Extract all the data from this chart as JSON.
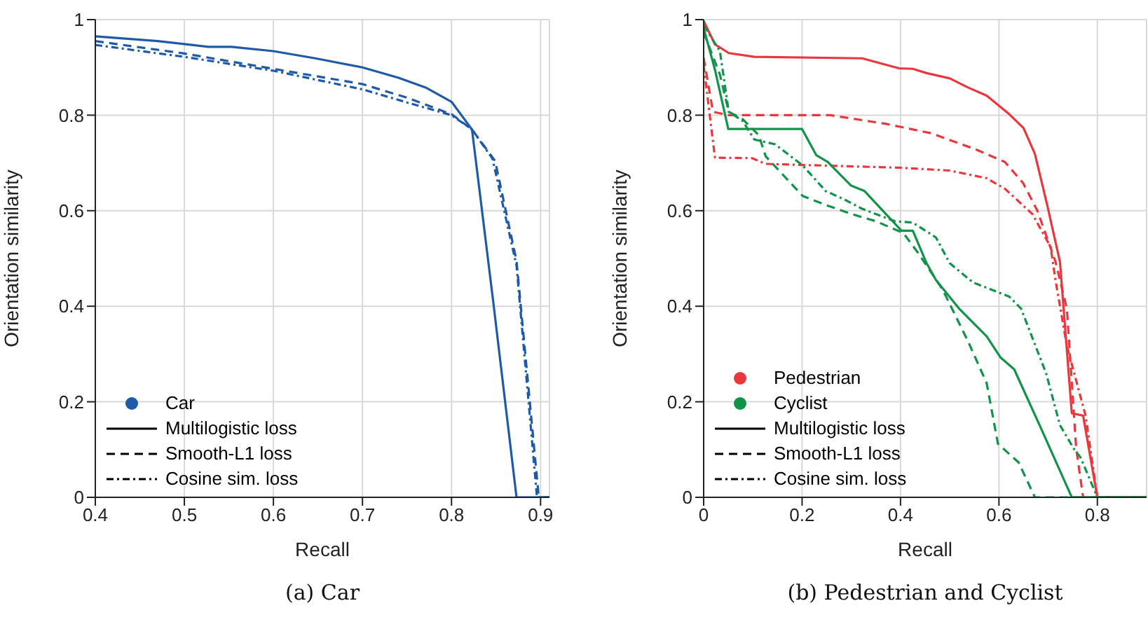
{
  "chart_data": [
    {
      "type": "line",
      "title": "(a) Car",
      "xlabel": "Recall",
      "ylabel": "Orientation similarity",
      "xlim": [
        0.4,
        0.91
      ],
      "xticks": [
        0.4,
        0.5,
        0.6,
        0.7,
        0.8,
        0.9
      ],
      "ylim": [
        0,
        1
      ],
      "yticks": [
        0,
        0.2,
        0.4,
        0.6,
        0.8,
        1
      ],
      "grid": true,
      "legend": "bottom left",
      "marker": "none",
      "series": [
        {
          "color": "#1f5aa6",
          "line_style": "solid",
          "x": [
            0.4,
            0.47,
            0.527,
            0.553,
            0.6,
            0.647,
            0.7,
            0.741,
            0.772,
            0.8,
            0.823,
            0.847,
            0.873,
            0.91
          ],
          "values": [
            0.965,
            0.955,
            0.943,
            0.943,
            0.934,
            0.919,
            0.9,
            0.878,
            0.857,
            0.828,
            0.77,
            0.407,
            0,
            0
          ]
        },
        {
          "color": "#1f5aa6",
          "line_style": "dashed",
          "x": [
            0.4,
            0.5,
            0.6,
            0.647,
            0.7,
            0.751,
            0.8,
            0.823,
            0.849,
            0.873,
            0.898,
            0.91
          ],
          "values": [
            0.955,
            0.929,
            0.897,
            0.882,
            0.865,
            0.836,
            0.802,
            0.77,
            0.704,
            0.495,
            0,
            0
          ]
        },
        {
          "color": "#1f5aa6",
          "line_style": "dashdot",
          "x": [
            0.4,
            0.5,
            0.6,
            0.7,
            0.751,
            0.8,
            0.823,
            0.846,
            0.873,
            0.896,
            0.91
          ],
          "values": [
            0.947,
            0.922,
            0.893,
            0.854,
            0.826,
            0.8,
            0.77,
            0.709,
            0.485,
            0,
            0
          ]
        },
        {
          "name": "Car",
          "type": "scatter",
          "color": "#1f5aa6"
        },
        {
          "name": "Multilogistic loss",
          "color": "#000000",
          "line_style": "solid"
        },
        {
          "name": "Smooth-L1 loss",
          "color": "#000000",
          "line_style": "dashed"
        },
        {
          "name": "Cosine sim. loss",
          "color": "#000000",
          "line_style": "dashdot"
        }
      ]
    },
    {
      "type": "line",
      "title": "(b) Pedestrian and Cyclist",
      "xlabel": "Recall",
      "ylabel": "Orientation similarity",
      "xlim": [
        0,
        0.9
      ],
      "xticks": [
        0,
        0.2,
        0.4,
        0.6,
        0.8
      ],
      "ylim": [
        0,
        1
      ],
      "yticks": [
        0,
        0.2,
        0.4,
        0.6,
        0.8,
        1
      ],
      "grid": true,
      "legend": "bottom left",
      "marker": "none",
      "series": [
        {
          "color": "#e8383d",
          "line_style": "solid",
          "x": [
            0,
            0.023,
            0.051,
            0.103,
            0.322,
            0.397,
            0.425,
            0.453,
            0.5,
            0.537,
            0.575,
            0.621,
            0.65,
            0.673,
            0.698,
            0.724,
            0.748,
            0.771,
            0.8,
            0.9
          ],
          "values": [
            0.997,
            0.948,
            0.93,
            0.922,
            0.919,
            0.898,
            0.897,
            0.888,
            0.877,
            0.858,
            0.841,
            0.802,
            0.773,
            0.719,
            0.612,
            0.493,
            0.176,
            0.171,
            0,
            0
          ]
        },
        {
          "color": "#e8383d",
          "line_style": "dashed",
          "x": [
            0,
            0.019,
            0.051,
            0.257,
            0.369,
            0.463,
            0.556,
            0.612,
            0.649,
            0.678,
            0.715,
            0.738,
            0.757,
            0.771,
            0.9
          ],
          "values": [
            0.92,
            0.807,
            0.8,
            0.8,
            0.782,
            0.762,
            0.727,
            0.702,
            0.658,
            0.6,
            0.493,
            0.395,
            0.102,
            0,
            0
          ]
        },
        {
          "color": "#e8383d",
          "line_style": "dashdot",
          "x": [
            0,
            0.023,
            0.098,
            0.126,
            0.294,
            0.397,
            0.5,
            0.575,
            0.612,
            0.668,
            0.705,
            0.715,
            0.738,
            0.776,
            0.8,
            0.9
          ],
          "values": [
            0.904,
            0.711,
            0.71,
            0.698,
            0.693,
            0.69,
            0.684,
            0.668,
            0.646,
            0.593,
            0.524,
            0.454,
            0.317,
            0.171,
            0,
            0
          ]
        },
        {
          "color": "#12924a",
          "line_style": "solid",
          "x": [
            0,
            0.023,
            0.05,
            0.2,
            0.229,
            0.252,
            0.299,
            0.327,
            0.402,
            0.425,
            0.453,
            0.472,
            0.519,
            0.575,
            0.603,
            0.631,
            0.687,
            0.748,
            0.9
          ],
          "values": [
            0.982,
            0.895,
            0.771,
            0.771,
            0.716,
            0.702,
            0.653,
            0.641,
            0.558,
            0.558,
            0.49,
            0.455,
            0.395,
            0.337,
            0.293,
            0.268,
            0.141,
            0,
            0
          ]
        },
        {
          "color": "#12924a",
          "line_style": "dashed",
          "x": [
            0,
            0.033,
            0.051,
            0.079,
            0.112,
            0.126,
            0.201,
            0.248,
            0.304,
            0.35,
            0.406,
            0.434,
            0.472,
            0.486,
            0.537,
            0.575,
            0.598,
            0.64,
            0.673,
            0.9
          ],
          "values": [
            0.973,
            0.885,
            0.807,
            0.792,
            0.758,
            0.714,
            0.631,
            0.612,
            0.592,
            0.578,
            0.553,
            0.514,
            0.456,
            0.434,
            0.327,
            0.239,
            0.112,
            0.073,
            0,
            0
          ]
        },
        {
          "color": "#12924a",
          "line_style": "dashdot",
          "x": [
            0,
            0.033,
            0.051,
            0.079,
            0.103,
            0.145,
            0.201,
            0.248,
            0.285,
            0.322,
            0.388,
            0.425,
            0.472,
            0.5,
            0.547,
            0.621,
            0.645,
            0.696,
            0.724,
            0.752,
            0.766,
            0.8,
            0.9
          ],
          "values": [
            0.988,
            0.934,
            0.807,
            0.788,
            0.749,
            0.739,
            0.695,
            0.641,
            0.624,
            0.604,
            0.578,
            0.575,
            0.544,
            0.49,
            0.45,
            0.42,
            0.395,
            0.259,
            0.151,
            0.102,
            0.083,
            0,
            0
          ]
        },
        {
          "name": "Pedestrian",
          "type": "scatter",
          "color": "#e8383d"
        },
        {
          "name": "Cyclist",
          "type": "scatter",
          "color": "#12924a"
        },
        {
          "name": "Multilogistic loss",
          "color": "#000000",
          "line_style": "solid"
        },
        {
          "name": "Smooth-L1 loss",
          "color": "#000000",
          "line_style": "dashed"
        },
        {
          "name": "Cosine sim. loss",
          "color": "#000000",
          "line_style": "dashdot"
        }
      ]
    }
  ]
}
